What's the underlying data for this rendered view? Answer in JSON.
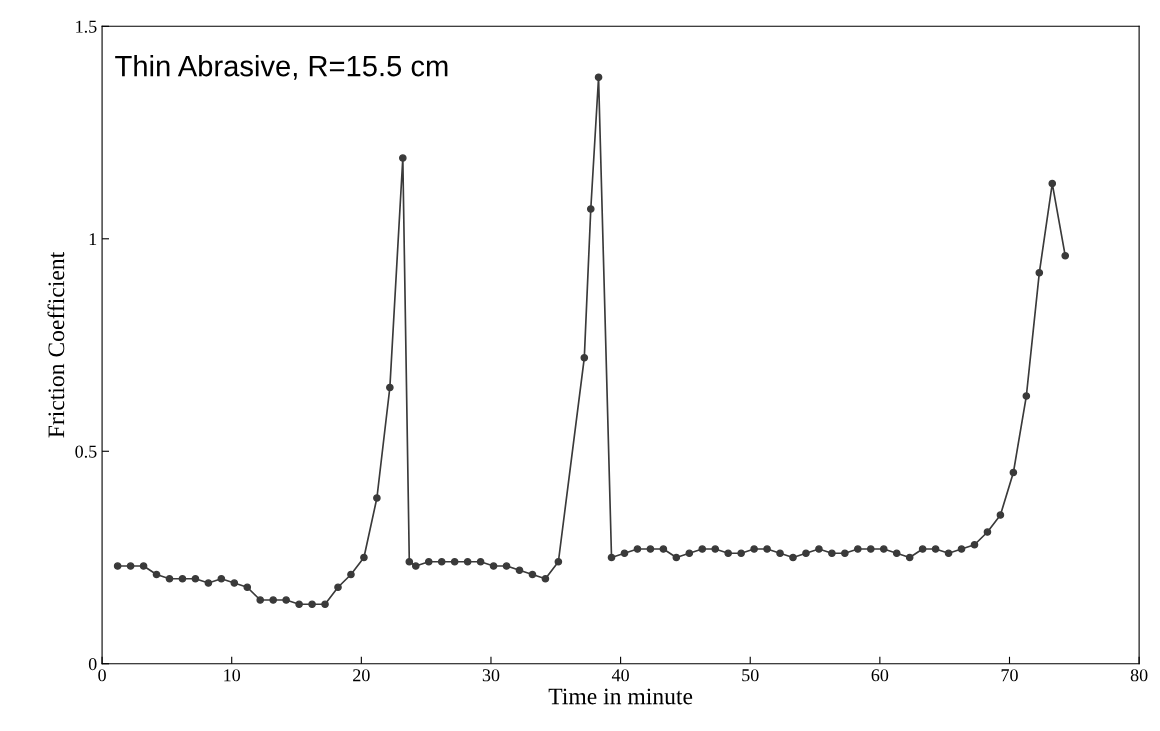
{
  "chart_data": {
    "type": "line",
    "xlabel": "Time in minute",
    "ylabel": "Friction Coefficient",
    "annotations": [
      "Thin Abrasive, R=15.5 cm"
    ],
    "xlim": [
      0,
      80
    ],
    "xticks": [
      0,
      10,
      20,
      30,
      40,
      50,
      60,
      70,
      80
    ],
    "ylim": [
      0,
      1.5
    ],
    "yticks": [
      0,
      0.5,
      1,
      1.5
    ],
    "grid": false,
    "marker": "circle",
    "line_style": "solid",
    "series": [
      {
        "color": "#3a3a3a",
        "x": [
          1.2,
          2.2,
          3.2,
          4.2,
          5.2,
          6.2,
          7.2,
          8.2,
          9.2,
          10.2,
          11.2,
          12.2,
          13.2,
          14.2,
          15.2,
          16.2,
          17.2,
          18.2,
          19.2,
          20.2,
          21.2,
          22.2,
          23.2,
          23.7,
          24.2,
          25.2,
          26.2,
          27.2,
          28.2,
          29.2,
          30.2,
          31.2,
          32.2,
          33.2,
          34.2,
          35.2,
          37.2,
          37.7,
          38.3,
          39.3,
          40.3,
          41.3,
          42.3,
          43.3,
          44.3,
          45.3,
          46.3,
          47.3,
          48.3,
          49.3,
          50.3,
          51.3,
          52.3,
          53.3,
          54.3,
          55.3,
          56.3,
          57.3,
          58.3,
          59.3,
          60.3,
          61.3,
          62.3,
          63.3,
          64.3,
          65.3,
          66.3,
          67.3,
          68.3,
          69.3,
          70.3,
          71.3,
          72.3,
          73.3,
          74.3
        ],
        "values": [
          0.23,
          0.23,
          0.23,
          0.21,
          0.2,
          0.2,
          0.2,
          0.19,
          0.2,
          0.19,
          0.18,
          0.15,
          0.15,
          0.15,
          0.14,
          0.14,
          0.14,
          0.18,
          0.21,
          0.25,
          0.39,
          0.65,
          1.19,
          0.24,
          0.23,
          0.24,
          0.24,
          0.24,
          0.24,
          0.24,
          0.23,
          0.23,
          0.22,
          0.21,
          0.2,
          0.24,
          0.72,
          1.07,
          1.38,
          0.25,
          0.26,
          0.27,
          0.27,
          0.27,
          0.25,
          0.26,
          0.27,
          0.27,
          0.26,
          0.26,
          0.27,
          0.27,
          0.26,
          0.25,
          0.26,
          0.27,
          0.26,
          0.26,
          0.27,
          0.27,
          0.27,
          0.26,
          0.25,
          0.27,
          0.27,
          0.26,
          0.27,
          0.28,
          0.31,
          0.35,
          0.45,
          0.63,
          0.92,
          1.13,
          0.96
        ]
      }
    ]
  }
}
